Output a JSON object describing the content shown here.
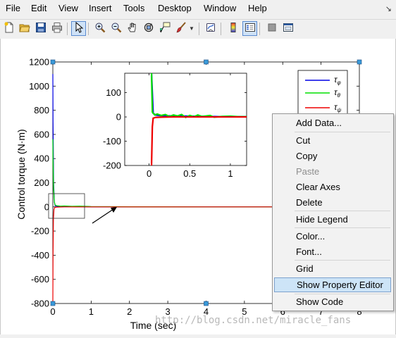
{
  "menu": {
    "items": [
      "File",
      "Edit",
      "View",
      "Insert",
      "Tools",
      "Desktop",
      "Window",
      "Help"
    ],
    "arrow": "↘"
  },
  "toolbar": {
    "icons": [
      "new-figure-icon",
      "open-file-icon",
      "save-icon",
      "print-icon",
      "select-arrow-icon",
      "zoom-in-icon",
      "zoom-out-icon",
      "pan-hand-icon",
      "rotate-3d-icon",
      "data-cursor-icon",
      "brush-icon",
      "link-plot-icon",
      "colorbar-icon",
      "legend-icon",
      "hide-plot-tools-icon",
      "show-plot-tools-icon"
    ]
  },
  "chart_data": [
    {
      "type": "line",
      "xlabel": "Time (sec)",
      "ylabel": "Control torque (N·m)",
      "xlim": [
        0,
        8
      ],
      "ylim": [
        -800,
        1200
      ],
      "x_ticks": [
        "0",
        "1",
        "2",
        "3",
        "4",
        "5",
        "6",
        "7",
        "8"
      ],
      "y_ticks": [
        "1200",
        "1000",
        "800",
        "600",
        "400",
        "200",
        "0",
        "-200",
        "-400",
        "-600",
        "-800"
      ],
      "legend": [
        "τ_φ",
        "τ_θ",
        "τ_ψ"
      ],
      "legend_labels": [
        {
          "base": "τ",
          "sub": "φ"
        },
        {
          "base": "τ",
          "sub": "θ"
        },
        {
          "base": "τ",
          "sub": "ψ"
        }
      ],
      "legend_position": "top-right",
      "series": [
        {
          "name": "τ_φ",
          "color": "#0000e6",
          "x": [
            0,
            0.005,
            0.02,
            0.04,
            0.06,
            0.1,
            0.3,
            0.6,
            1,
            2,
            4,
            6,
            8
          ],
          "y": [
            1100,
            700,
            200,
            40,
            10,
            4,
            2,
            1,
            0,
            0,
            0,
            0,
            0
          ]
        },
        {
          "name": "τ_θ",
          "color": "#00e000",
          "x": [
            0,
            0.005,
            0.02,
            0.04,
            0.06,
            0.1,
            0.2,
            0.3,
            0.5,
            0.7,
            1,
            2,
            4,
            6,
            8
          ],
          "y": [
            560,
            400,
            150,
            40,
            15,
            10,
            6,
            8,
            5,
            6,
            3,
            1,
            0,
            0,
            0
          ]
        },
        {
          "name": "τ_ψ",
          "color": "#ee0000",
          "x": [
            0,
            0.005,
            0.015,
            0.03,
            0.05,
            0.1,
            0.3,
            0.6,
            1,
            2,
            4,
            6,
            8
          ],
          "y": [
            -780,
            -400,
            -100,
            -20,
            -5,
            -2,
            0,
            0,
            0,
            0,
            0,
            0,
            0
          ]
        }
      ],
      "grid": false
    },
    {
      "type": "line",
      "xlim": [
        -0.3,
        1.2
      ],
      "ylim": [
        -200,
        180
      ],
      "x_ticks": [
        0,
        0.5,
        1
      ],
      "y_ticks": [
        100,
        0,
        -100,
        -200
      ],
      "series": [
        {
          "name": "τ_φ",
          "color": "#0000e6",
          "x": [
            0.03,
            0.05,
            0.08,
            0.15,
            0.3,
            0.5,
            0.7,
            0.9,
            1.2
          ],
          "y": [
            180,
            15,
            8,
            5,
            4,
            3,
            2,
            1,
            1
          ]
        },
        {
          "name": "τ_θ",
          "color": "#00e000",
          "x": [
            0.03,
            0.04,
            0.07,
            0.1,
            0.15,
            0.2,
            0.25,
            0.3,
            0.35,
            0.4,
            0.45,
            0.5,
            0.55,
            0.6,
            0.65,
            0.7,
            0.75,
            0.8,
            0.9,
            1.0,
            1.1,
            1.2
          ],
          "y": [
            180,
            20,
            8,
            12,
            6,
            10,
            2,
            8,
            4,
            10,
            -2,
            6,
            1,
            8,
            2,
            4,
            6,
            -1,
            2,
            3,
            1,
            1
          ]
        },
        {
          "name": "τ_ψ",
          "color": "#ee0000",
          "x": [
            0.03,
            0.04,
            0.05,
            0.08,
            0.15,
            0.3,
            0.6,
            0.9,
            1.2
          ],
          "y": [
            -200,
            -40,
            -5,
            -2,
            -1,
            0,
            0,
            0,
            0
          ]
        }
      ],
      "grid": false
    }
  ],
  "context_menu": {
    "items": [
      {
        "label": "Add Data...",
        "disabled": false
      },
      {
        "label": "Cut",
        "disabled": false
      },
      {
        "label": "Copy",
        "disabled": false
      },
      {
        "label": "Paste",
        "disabled": true
      },
      {
        "label": "Clear Axes",
        "disabled": false
      },
      {
        "label": "Delete",
        "disabled": false
      },
      {
        "label": "Hide Legend",
        "disabled": false
      },
      {
        "label": "Color...",
        "disabled": false
      },
      {
        "label": "Font...",
        "disabled": false
      },
      {
        "label": "Grid",
        "disabled": false
      },
      {
        "label": "Show Property Editor",
        "disabled": false,
        "highlighted": true
      },
      {
        "label": "Show Code",
        "disabled": false
      }
    ]
  },
  "watermark": "http://blog.csdn.net/miracle_fans"
}
